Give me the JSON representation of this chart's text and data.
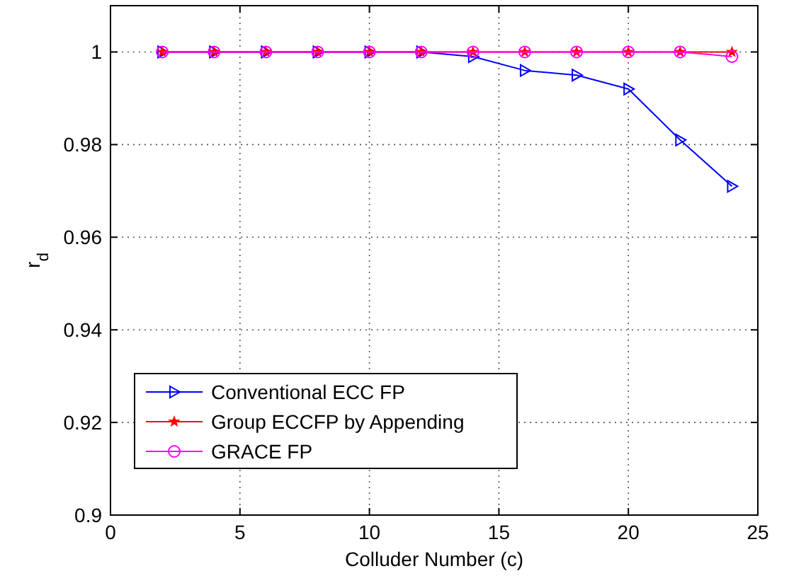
{
  "chart_data": {
    "type": "line",
    "xlabel": "Colluder Number (c)",
    "ylabel": "r$_{d}$",
    "x": [
      2,
      4,
      6,
      8,
      10,
      12,
      14,
      16,
      18,
      20,
      22,
      24
    ],
    "xlim": [
      0,
      25
    ],
    "xticks": [
      0,
      5,
      10,
      15,
      20,
      25
    ],
    "ylim": [
      0.9,
      1.01
    ],
    "yticks": [
      0.9,
      0.92,
      0.94,
      0.96,
      0.98,
      1
    ],
    "grid": true,
    "legend": "bottom left",
    "line_style": "solid",
    "series": [
      {
        "name": "Conventional ECC FP",
        "color": "#0000ff",
        "marker": "triangle",
        "values": [
          1,
          1,
          1,
          1,
          1,
          1,
          0.999,
          0.996,
          0.995,
          0.992,
          0.981,
          0.971
        ]
      },
      {
        "name": "Group ECCFP by Appending",
        "color": "#ff0000",
        "marker": "star",
        "values": [
          1,
          1,
          1,
          1,
          1,
          1,
          1,
          1,
          1,
          1,
          1,
          1
        ]
      },
      {
        "name": "GRACE FP",
        "color": "#ff00ff",
        "marker": "circle",
        "values": [
          1,
          1,
          1,
          1,
          1,
          1,
          1,
          1,
          1,
          1,
          1,
          0.999
        ]
      }
    ]
  }
}
